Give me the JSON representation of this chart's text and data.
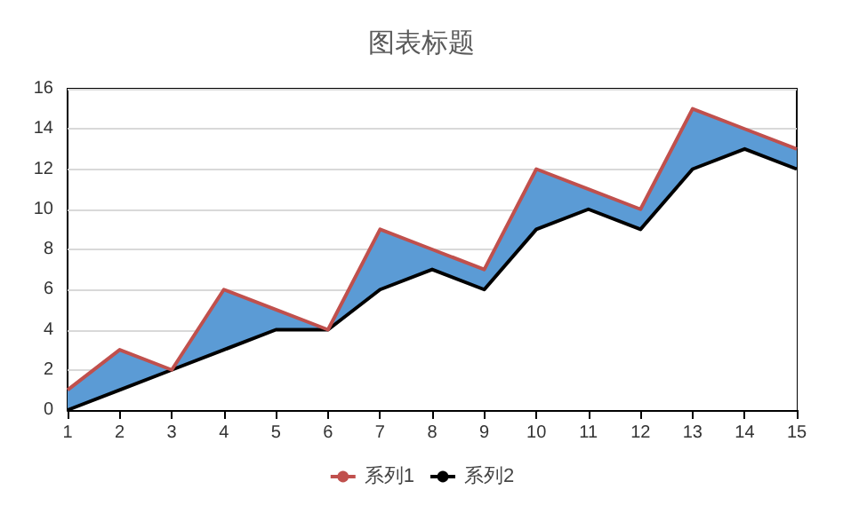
{
  "chart_data": {
    "type": "line",
    "title": "图表标题",
    "categories": [
      "1",
      "2",
      "3",
      "4",
      "5",
      "6",
      "7",
      "8",
      "9",
      "10",
      "11",
      "12",
      "13",
      "14",
      "15"
    ],
    "series": [
      {
        "type": "area",
        "color": "#5b9bd5",
        "values": [
          1,
          3,
          2,
          6,
          5,
          4,
          9,
          8,
          7,
          12,
          11,
          10,
          15,
          14,
          13
        ]
      },
      {
        "name": "系列1",
        "color": "#c0504d",
        "values": [
          1,
          3,
          2,
          6,
          5,
          4,
          9,
          8,
          7,
          12,
          11,
          10,
          15,
          14,
          13
        ]
      },
      {
        "name": "系列2",
        "type": "area",
        "color": "#000000",
        "values": [
          0,
          1,
          2,
          3,
          4,
          4,
          6,
          7,
          6,
          9,
          10,
          9,
          12,
          13,
          12
        ]
      }
    ],
    "ylim": [
      0,
      16
    ],
    "yticks": [
      0,
      2,
      4,
      6,
      8,
      10,
      12,
      14,
      16
    ],
    "grid": "y",
    "legend": "bottom",
    "marker": "none",
    "line_style": "solid"
  }
}
